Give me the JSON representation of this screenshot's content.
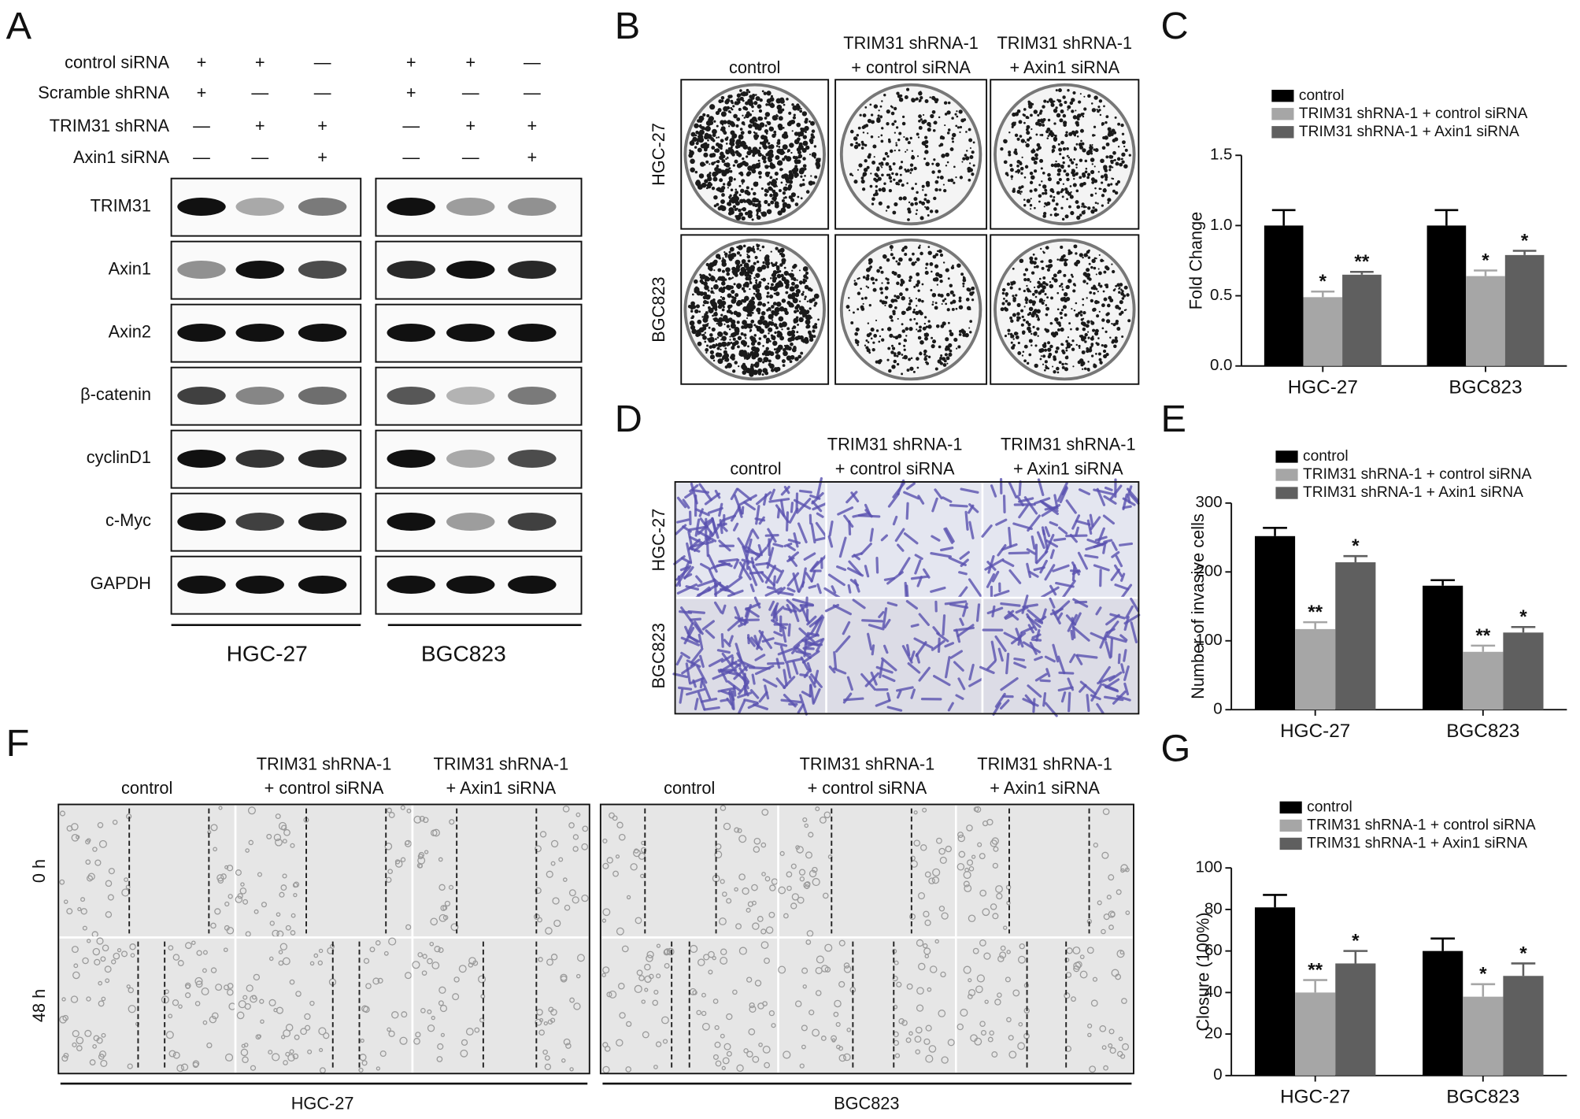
{
  "panel_labels": [
    "A",
    "B",
    "C",
    "D",
    "E",
    "F",
    "G"
  ],
  "western_blot": {
    "treatments": [
      {
        "label": "control siRNA",
        "signs": [
          "+",
          "+",
          "—",
          "+",
          "+",
          "—"
        ]
      },
      {
        "label": "Scramble shRNA",
        "signs": [
          "+",
          "—",
          "—",
          "+",
          "—",
          "—"
        ]
      },
      {
        "label": "TRIM31 shRNA",
        "signs": [
          "—",
          "+",
          "+",
          "—",
          "+",
          "+"
        ]
      },
      {
        "label": "Axin1 siRNA",
        "signs": [
          "—",
          "—",
          "+",
          "—",
          "—",
          "+"
        ]
      }
    ],
    "proteins": [
      "TRIM31",
      "Axin1",
      "Axin2",
      "β-catenin",
      "cyclinD1",
      "c-Myc",
      "GAPDH"
    ],
    "groups": [
      "HGC-27",
      "BGC823"
    ]
  },
  "colony_assay": {
    "columns": [
      [
        "control"
      ],
      [
        "TRIM31 shRNA-1",
        "+ control siRNA"
      ],
      [
        "TRIM31 shRNA-1",
        "+ Axin1 siRNA"
      ]
    ],
    "rows": [
      "HGC-27",
      "BGC823"
    ]
  },
  "transwell_assay": {
    "columns": [
      [
        "control"
      ],
      [
        "TRIM31 shRNA-1",
        "+ control siRNA"
      ],
      [
        "TRIM31 shRNA-1",
        "+ Axin1 siRNA"
      ]
    ],
    "rows": [
      "HGC-27",
      "BGC823"
    ]
  },
  "wound_healing": {
    "rows": [
      "0 h",
      "48 h"
    ],
    "groups": [
      {
        "name": "HGC-27",
        "columns": [
          [
            "control"
          ],
          [
            "TRIM31 shRNA-1",
            "+ control siRNA"
          ],
          [
            "TRIM31 shRNA-1",
            "+ Axin1 siRNA"
          ]
        ]
      },
      {
        "name": "BGC823",
        "columns": [
          [
            "control"
          ],
          [
            "TRIM31 shRNA-1",
            "+ control siRNA"
          ],
          [
            "TRIM31 shRNA-1",
            "+ Axin1 siRNA"
          ]
        ]
      }
    ]
  },
  "chart_data": [
    {
      "type": "bar",
      "y_label": "Fold Change",
      "categories": [
        "HGC-27",
        "BGC823"
      ],
      "ylim": [
        0,
        1.5
      ],
      "yticks": [
        {
          "value": 0,
          "label": "0.0"
        },
        {
          "value": 0.5,
          "label": "0.5"
        },
        {
          "value": 1,
          "label": "1.0"
        },
        {
          "value": 1.5,
          "label": "1.5"
        }
      ],
      "series": [
        {
          "name": "control",
          "color": "#000000",
          "values": [
            1.0,
            1.0
          ],
          "errors": [
            0.11,
            0.11
          ]
        },
        {
          "name": "TRIM31 shRNA-1 + control siRNA",
          "color": "#a6a6a6",
          "values": [
            0.49,
            0.64
          ],
          "errors": [
            0.04,
            0.04
          ],
          "significance": [
            "*",
            "*"
          ]
        },
        {
          "name": "TRIM31 shRNA-1 + Axin1 siRNA",
          "color": "#5f5f5f",
          "values": [
            0.65,
            0.79
          ],
          "errors": [
            0.02,
            0.03
          ],
          "significance": [
            "**",
            "*"
          ]
        }
      ]
    },
    {
      "type": "bar",
      "y_label": "Number of invasive cells",
      "categories": [
        "HGC-27",
        "BGC823"
      ],
      "ylim": [
        0,
        300
      ],
      "yticks": [
        0,
        100,
        200,
        300
      ],
      "series": [
        {
          "name": "control",
          "color": "#000000",
          "values": [
            252,
            180
          ],
          "errors": [
            12,
            8
          ]
        },
        {
          "name": "TRIM31 shRNA-1 + control siRNA",
          "color": "#a6a6a6",
          "values": [
            117,
            84
          ],
          "errors": [
            10,
            9
          ],
          "significance": [
            "**",
            "**"
          ]
        },
        {
          "name": "TRIM31 shRNA-1 + Axin1 siRNA",
          "color": "#5f5f5f",
          "values": [
            214,
            112
          ],
          "errors": [
            9,
            8
          ],
          "significance": [
            "*",
            "*"
          ]
        }
      ]
    },
    {
      "type": "bar",
      "y_label": "Closure (100%)",
      "categories": [
        "HGC-27",
        "BGC823"
      ],
      "ylim": [
        0,
        100
      ],
      "yticks": [
        0,
        20,
        40,
        60,
        80,
        100
      ],
      "series": [
        {
          "name": "control",
          "color": "#000000",
          "values": [
            81,
            60
          ],
          "errors": [
            6,
            6
          ]
        },
        {
          "name": "TRIM31 shRNA-1 + control siRNA",
          "color": "#a6a6a6",
          "values": [
            40,
            38
          ],
          "errors": [
            6,
            6
          ],
          "significance": [
            "**",
            "*"
          ]
        },
        {
          "name": "TRIM31 shRNA-1 + Axin1 siRNA",
          "color": "#5f5f5f",
          "values": [
            54,
            48
          ],
          "errors": [
            6,
            6
          ],
          "significance": [
            "*",
            "*"
          ]
        }
      ]
    }
  ]
}
